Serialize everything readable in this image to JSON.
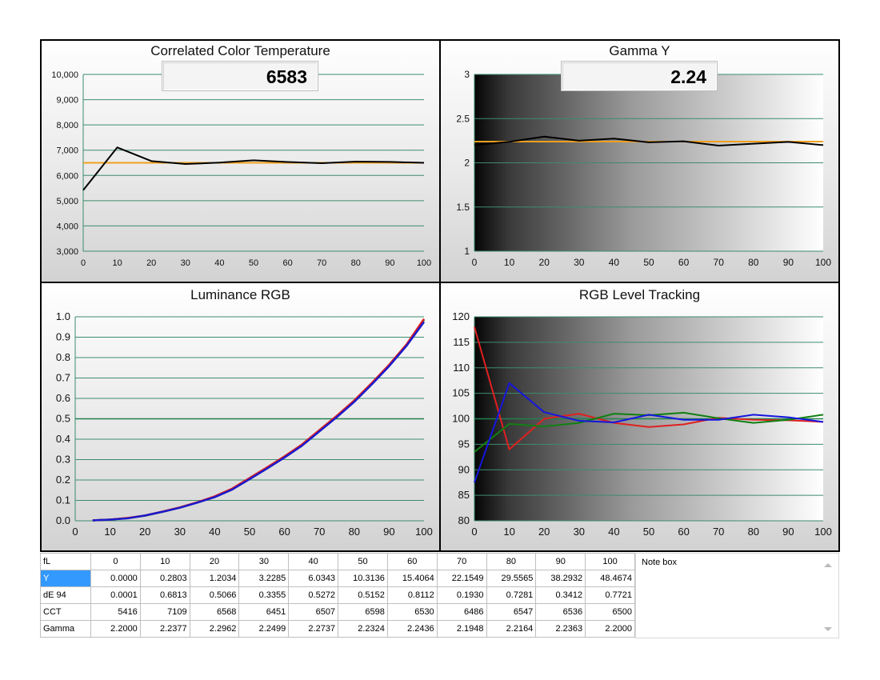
{
  "chart_data": [
    {
      "type": "line",
      "title": "Correlated Color Temperature",
      "readout": "6583",
      "x": [
        0,
        10,
        20,
        30,
        40,
        50,
        60,
        70,
        80,
        90,
        100
      ],
      "series": [
        {
          "color": "#000000",
          "values": [
            5416,
            7109,
            6568,
            6451,
            6507,
            6598,
            6530,
            6486,
            6547,
            6536,
            6500
          ]
        },
        {
          "color": "#f0a020",
          "values": [
            6500,
            6500,
            6500,
            6500,
            6500,
            6500,
            6500,
            6500,
            6500,
            6500,
            6500
          ]
        }
      ],
      "xlim": [
        0,
        100
      ],
      "ylim": [
        3000,
        10000
      ],
      "xticks": [
        "0",
        "10",
        "20",
        "30",
        "40",
        "50",
        "60",
        "70",
        "80",
        "90",
        "100"
      ],
      "yticks": [
        "3,000",
        "4,000",
        "5,000",
        "6,000",
        "7,000",
        "8,000",
        "9,000",
        "10,000"
      ],
      "background": "light-gradient",
      "grid": true
    },
    {
      "type": "line",
      "title": "Gamma Y",
      "readout": "2.24",
      "x": [
        0,
        10,
        20,
        30,
        40,
        50,
        60,
        70,
        80,
        90,
        100
      ],
      "series": [
        {
          "color": "#000000",
          "values": [
            2.2,
            2.2377,
            2.2962,
            2.2499,
            2.2737,
            2.2324,
            2.2436,
            2.1948,
            2.2164,
            2.2363,
            2.2
          ]
        },
        {
          "color": "#f0a020",
          "values": [
            2.24,
            2.24,
            2.24,
            2.24,
            2.24,
            2.24,
            2.24,
            2.24,
            2.24,
            2.24,
            2.24
          ]
        }
      ],
      "xlim": [
        0,
        100
      ],
      "ylim": [
        1,
        3
      ],
      "xticks": [
        "0",
        "10",
        "20",
        "30",
        "40",
        "50",
        "60",
        "70",
        "80",
        "90",
        "100"
      ],
      "yticks": [
        "1",
        "1.5",
        "2",
        "2.5",
        "3"
      ],
      "background": "dark-to-light-gradient",
      "grid": true
    },
    {
      "type": "line",
      "title": "Luminance RGB",
      "x": [
        5,
        10,
        15,
        20,
        25,
        30,
        35,
        40,
        45,
        50,
        55,
        60,
        65,
        70,
        75,
        80,
        85,
        90,
        95,
        100
      ],
      "series": [
        {
          "color": "#008000",
          "values": [
            0.002,
            0.006,
            0.013,
            0.025,
            0.044,
            0.065,
            0.09,
            0.118,
            0.155,
            0.205,
            0.258,
            0.312,
            0.37,
            0.44,
            0.51,
            0.585,
            0.67,
            0.76,
            0.86,
            0.985
          ]
        },
        {
          "color": "#e02020",
          "values": [
            0.002,
            0.006,
            0.014,
            0.026,
            0.045,
            0.066,
            0.091,
            0.12,
            0.158,
            0.21,
            0.262,
            0.316,
            0.374,
            0.445,
            0.515,
            0.59,
            0.675,
            0.765,
            0.865,
            0.99
          ]
        },
        {
          "color": "#1a1acc",
          "values": [
            0.002,
            0.006,
            0.012,
            0.026,
            0.044,
            0.064,
            0.089,
            0.116,
            0.153,
            0.204,
            0.256,
            0.31,
            0.368,
            0.438,
            0.508,
            0.583,
            0.668,
            0.758,
            0.858,
            0.975
          ]
        }
      ],
      "reference": 0.5,
      "xlim": [
        0,
        100
      ],
      "ylim": [
        0,
        1
      ],
      "xticks": [
        "0",
        "10",
        "20",
        "30",
        "40",
        "50",
        "60",
        "70",
        "80",
        "90",
        "100"
      ],
      "yticks": [
        "0.0",
        "0.1",
        "0.2",
        "0.3",
        "0.4",
        "0.5",
        "0.6",
        "0.7",
        "0.8",
        "0.9",
        "1.0"
      ],
      "background": "light-gradient",
      "grid": true
    },
    {
      "type": "line",
      "title": "RGB Level Tracking",
      "x": [
        0,
        10,
        20,
        30,
        40,
        50,
        60,
        70,
        80,
        90,
        100
      ],
      "series": [
        {
          "color": "#e02020",
          "values": [
            118,
            94,
            100,
            101,
            99.2,
            98.4,
            98.9,
            100.2,
            99.8,
            99.7,
            99.4
          ]
        },
        {
          "color": "#108010",
          "values": [
            93.5,
            99,
            98.5,
            99.2,
            101,
            100.7,
            101.2,
            100.1,
            99.2,
            99.8,
            100.8
          ]
        },
        {
          "color": "#1515e0",
          "values": [
            87.5,
            107,
            101.3,
            99.6,
            99.3,
            100.8,
            99.8,
            99.8,
            100.8,
            100.3,
            99.4
          ]
        }
      ],
      "reference": 100,
      "xlim": [
        0,
        100
      ],
      "ylim": [
        80,
        120
      ],
      "xticks": [
        "0",
        "10",
        "20",
        "30",
        "40",
        "50",
        "60",
        "70",
        "80",
        "90",
        "100"
      ],
      "yticks": [
        "80",
        "85",
        "90",
        "95",
        "100",
        "105",
        "110",
        "115",
        "120"
      ],
      "background": "dark-to-light-gradient",
      "grid": true
    },
    {
      "type": "table",
      "columns": [
        "fL",
        "0",
        "10",
        "20",
        "30",
        "40",
        "50",
        "60",
        "70",
        "80",
        "90",
        "100"
      ],
      "rows": [
        {
          "label": "Y",
          "selected": true,
          "values": [
            "0.0000",
            "0.2803",
            "1.2034",
            "3.2285",
            "6.0343",
            "10.3136",
            "15.4064",
            "22.1549",
            "29.5565",
            "38.2932",
            "48.4674"
          ]
        },
        {
          "label": "dE 94",
          "values": [
            "0.0001",
            "0.6813",
            "0.5066",
            "0.3355",
            "0.5272",
            "0.5152",
            "0.8112",
            "0.1930",
            "0.7281",
            "0.3412",
            "0.7721"
          ]
        },
        {
          "label": "CCT",
          "values": [
            "5416",
            "7109",
            "6568",
            "6451",
            "6507",
            "6598",
            "6530",
            "6486",
            "6547",
            "6536",
            "6500"
          ]
        },
        {
          "label": "Gamma",
          "values": [
            "2.2000",
            "2.2377",
            "2.2962",
            "2.2499",
            "2.2737",
            "2.2324",
            "2.2436",
            "2.1948",
            "2.2164",
            "2.2363",
            "2.2000"
          ]
        }
      ]
    }
  ],
  "note_box": {
    "label": "Note box"
  }
}
